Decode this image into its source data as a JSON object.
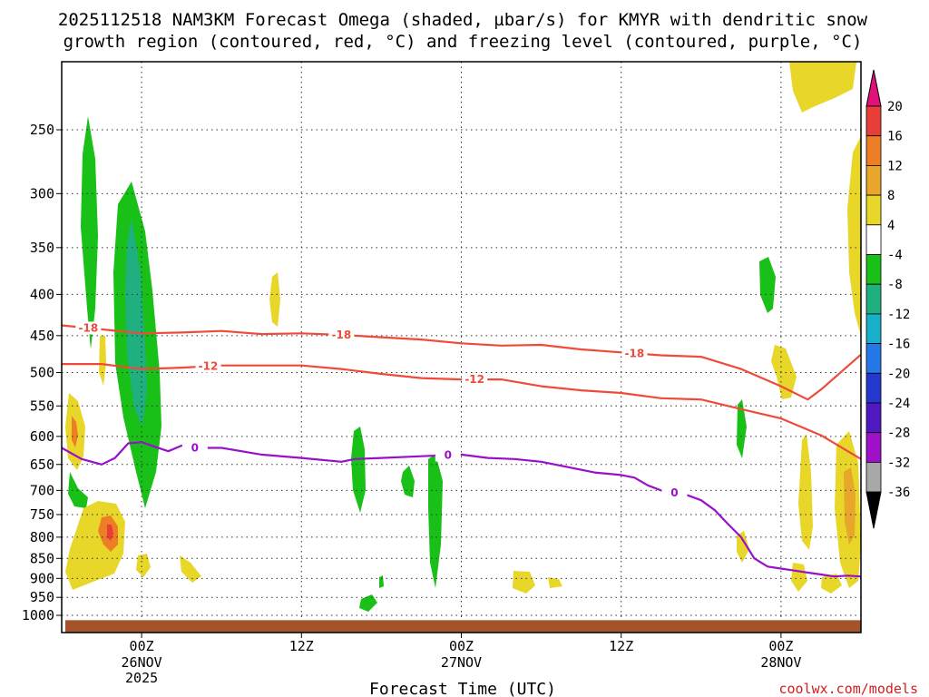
{
  "chart_data": {
    "type": "heatmap",
    "title": "2025112518 NAM3KM Forecast Omega (shaded, µbar/s) for KMYR with dendritic snow",
    "subtitle": "growth region (contoured, red, °C) and freezing level (contoured, purple, °C)",
    "xlabel": "Forecast Time (UTC)",
    "ylabel": "",
    "credit": "coolwx.com/models",
    "y_scale": "log-pressure",
    "y_ticks": [
      "250",
      "300",
      "350",
      "400",
      "450",
      "500",
      "550",
      "600",
      "650",
      "700",
      "750",
      "800",
      "850",
      "900",
      "950",
      "1000"
    ],
    "x_ticks": [
      {
        "hours": 6,
        "label": "00Z",
        "date": "26NOV",
        "year": "2025"
      },
      {
        "hours": 18,
        "label": "12Z",
        "date": "",
        "year": ""
      },
      {
        "hours": 30,
        "label": "00Z",
        "date": "27NOV",
        "year": ""
      },
      {
        "hours": 42,
        "label": "12Z",
        "date": "",
        "year": ""
      },
      {
        "hours": 54,
        "label": "00Z",
        "date": "28NOV",
        "year": ""
      }
    ],
    "x_range_hours": [
      0,
      60
    ],
    "y_range_hPa": [
      200,
      1030
    ],
    "colorbar": {
      "labels": [
        "20",
        "16",
        "12",
        "8",
        "4",
        "-4",
        "-8",
        "-12",
        "-16",
        "-20",
        "-24",
        "-28",
        "-32",
        "-36"
      ],
      "colors": [
        "#e0127a",
        "#e83e38",
        "#ee7e26",
        "#e8a62a",
        "#e8d628",
        "#ffffff",
        "#18c018",
        "#20b080",
        "#18b0c8",
        "#2478e8",
        "#2438d0",
        "#5018c0",
        "#a010c8",
        "#a8a8a8",
        "#000000"
      ]
    },
    "series": [
      {
        "name": "-18",
        "color": "#ef4a3a",
        "x": [
          0,
          3,
          6,
          9,
          12,
          15,
          18,
          21,
          24,
          27,
          30,
          33,
          36,
          39,
          42,
          45,
          48,
          51,
          54,
          56,
          57,
          60
        ],
        "y": [
          437,
          442,
          447,
          446,
          444,
          448,
          447,
          449,
          452,
          455,
          460,
          463,
          462,
          468,
          472,
          476,
          478,
          495,
          520,
          540,
          525,
          475
        ]
      },
      {
        "name": "-12",
        "color": "#ef4a3a",
        "x": [
          0,
          3,
          6,
          9,
          12,
          15,
          18,
          21,
          24,
          27,
          30,
          33,
          36,
          39,
          42,
          45,
          48,
          51,
          54,
          57,
          60
        ],
        "y": [
          488,
          488,
          495,
          493,
          490,
          490,
          490,
          495,
          502,
          508,
          510,
          510,
          520,
          526,
          530,
          538,
          540,
          555,
          570,
          598,
          640
        ]
      },
      {
        "name": "0",
        "color": "#9a10c8",
        "x": [
          0,
          1.5,
          3,
          4,
          5,
          6,
          7,
          8,
          9,
          10,
          12,
          15,
          18,
          21,
          22,
          24,
          27,
          30,
          32,
          34,
          36,
          38,
          40,
          42,
          43,
          44,
          45,
          46,
          47,
          48,
          49,
          50,
          51,
          52,
          53,
          54,
          55,
          56,
          57,
          58,
          59,
          60
        ],
        "y": [
          620,
          640,
          650,
          638,
          612,
          610,
          618,
          626,
          616,
          620,
          620,
          632,
          638,
          645,
          640,
          638,
          635,
          632,
          638,
          640,
          645,
          655,
          665,
          670,
          675,
          690,
          700,
          705,
          710,
          720,
          740,
          770,
          800,
          850,
          870,
          875,
          880,
          885,
          890,
          895,
          893,
          895
        ]
      }
    ]
  }
}
